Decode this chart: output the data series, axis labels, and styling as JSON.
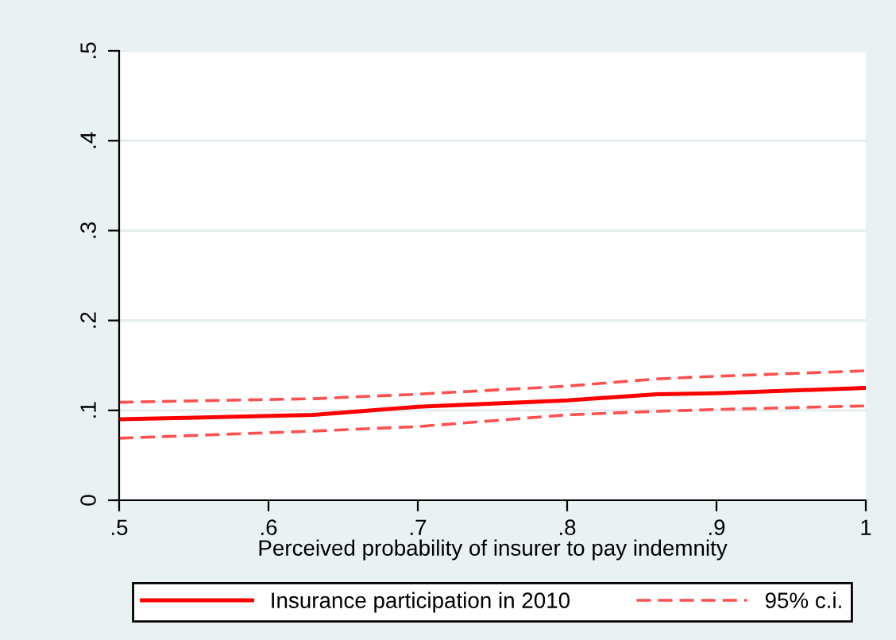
{
  "chart_data": {
    "type": "line",
    "xlabel": "Perceived probability of insurer to pay indemnity",
    "x": [
      0.5,
      0.63,
      0.7,
      0.8,
      0.86,
      0.9,
      1.0
    ],
    "series": [
      {
        "name": "Insurance participation in 2010",
        "color": "#ff0000",
        "line_style": "solid",
        "values": [
          0.09,
          0.095,
          0.104,
          0.111,
          0.118,
          0.119,
          0.125
        ]
      },
      {
        "name": "95% c.i.",
        "color": "#ff5050",
        "line_style": "dashed",
        "values": [
          0.109,
          0.113,
          0.118,
          0.127,
          0.135,
          0.138,
          0.144
        ]
      },
      {
        "color": "#ff5050",
        "line_style": "dashed",
        "values": [
          0.069,
          0.077,
          0.082,
          0.095,
          0.099,
          0.101,
          0.105
        ]
      }
    ],
    "xlim": [
      0.5,
      1.0
    ],
    "xticks": [
      {
        "value": 0.5,
        "label": ".5"
      },
      {
        "value": 0.6,
        "label": ".6"
      },
      {
        "value": 0.7,
        "label": ".7"
      },
      {
        "value": 0.8,
        "label": ".8"
      },
      {
        "value": 0.9,
        "label": ".9"
      },
      {
        "value": 1.0,
        "label": "1"
      }
    ],
    "ylim": [
      0,
      0.5
    ],
    "yticks": [
      {
        "value": 0,
        "label": "0"
      },
      {
        "value": 0.1,
        "label": ".1"
      },
      {
        "value": 0.2,
        "label": ".2"
      },
      {
        "value": 0.3,
        "label": ".3"
      },
      {
        "value": 0.4,
        "label": ".4"
      },
      {
        "value": 0.5,
        "label": ".5"
      }
    ],
    "grid": "y",
    "legend": "bottom",
    "marker": "none"
  }
}
